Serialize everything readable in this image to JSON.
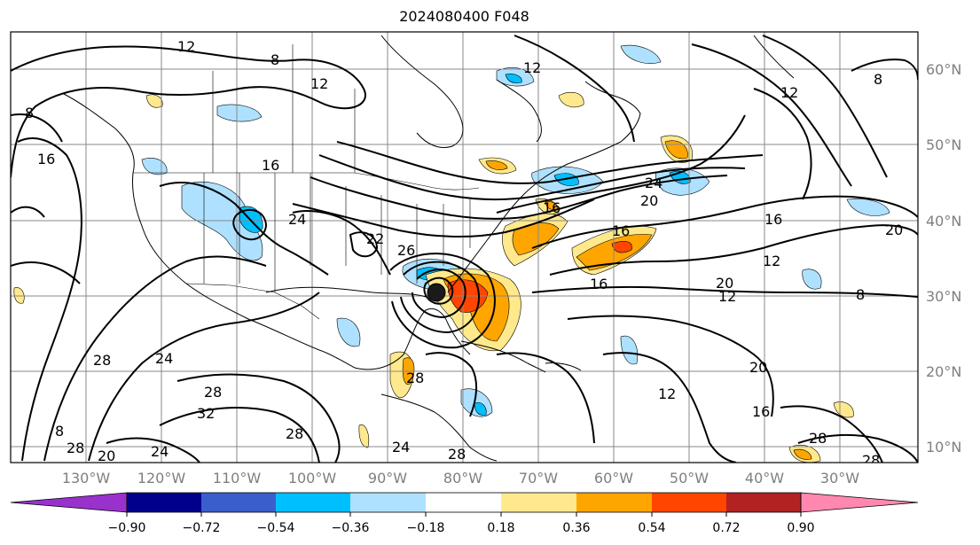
{
  "title": "2024080400 F048",
  "lat_labels": [
    "60°N",
    "50°N",
    "40°N",
    "30°N",
    "20°N",
    "10°N"
  ],
  "lon_labels": [
    "130°W",
    "120°W",
    "110°W",
    "100°W",
    "90°W",
    "80°W",
    "70°W",
    "60°W",
    "50°W",
    "40°W",
    "30°W"
  ],
  "colorbar": {
    "colors": [
      "#9932cc",
      "#00008b",
      "#3a5fcd",
      "#00bfff",
      "#aee1ff",
      "#ffffff",
      "#ffe98c",
      "#ffa500",
      "#ff4500",
      "#b22222",
      "#ff88b0"
    ],
    "ticks": [
      "−0.90",
      "−0.72",
      "−0.54",
      "−0.36",
      "−0.18",
      "0.18",
      "0.36",
      "0.54",
      "0.72",
      "0.90"
    ]
  },
  "contour_labels": [
    "12",
    "8",
    "12",
    "12",
    "12",
    "8",
    "8",
    "16",
    "16",
    "24",
    "22",
    "26",
    "16",
    "16",
    "24",
    "20",
    "16",
    "16",
    "12",
    "20",
    "12",
    "8",
    "20",
    "28",
    "24",
    "28",
    "32",
    "28",
    "8",
    "20",
    "24",
    "28",
    "24",
    "28",
    "28",
    "12",
    "20",
    "16",
    "28",
    "28"
  ],
  "storm_marker": "tropical-cyclone-center"
}
